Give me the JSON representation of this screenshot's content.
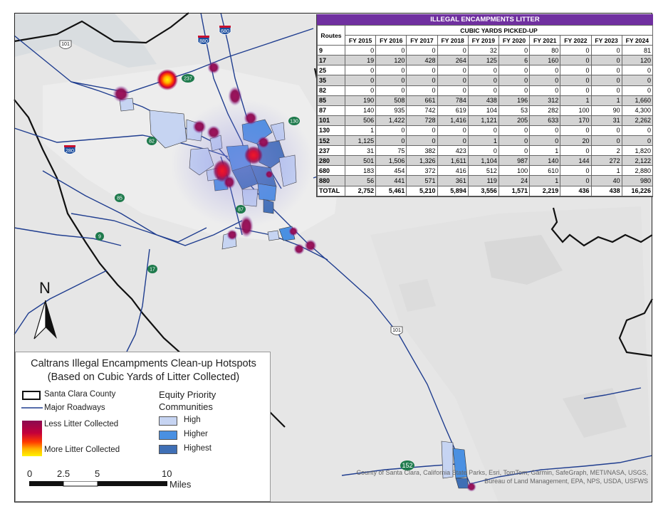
{
  "colors": {
    "county_border": "#111111",
    "roadway": "#1f3d8f",
    "equity_high": "#c6d4f2",
    "equity_higher": "#4a90e2",
    "equity_highest": "#3f6fb5",
    "table_header": "#7030a0",
    "hotspot_low": "#8b0a50",
    "hotspot_high": "#ffe600"
  },
  "table": {
    "title": "ILLEGAL ENCAMPMENTS LITTER",
    "routes_header": "Routes",
    "group_header": "CUBIC YARDS PICKED-UP",
    "years": [
      "FY 2015",
      "FY 2016",
      "FY 2017",
      "FY 2018",
      "FY 2019",
      "FY 2020",
      "FY 2021",
      "FY 2022",
      "FY 2023",
      "FY 2024"
    ],
    "rows": [
      {
        "route": "9",
        "values": [
          "0",
          "0",
          "0",
          "0",
          "32",
          "0",
          "80",
          "0",
          "0",
          "81"
        ],
        "shaded": false
      },
      {
        "route": "17",
        "values": [
          "19",
          "120",
          "428",
          "264",
          "125",
          "6",
          "160",
          "0",
          "0",
          "120"
        ],
        "shaded": true
      },
      {
        "route": "25",
        "values": [
          "0",
          "0",
          "0",
          "0",
          "0",
          "0",
          "0",
          "0",
          "0",
          "0"
        ],
        "shaded": false
      },
      {
        "route": "35",
        "values": [
          "0",
          "0",
          "0",
          "0",
          "0",
          "0",
          "0",
          "0",
          "0",
          "0"
        ],
        "shaded": true
      },
      {
        "route": "82",
        "values": [
          "0",
          "0",
          "0",
          "0",
          "0",
          "0",
          "0",
          "0",
          "0",
          "0"
        ],
        "shaded": false
      },
      {
        "route": "85",
        "values": [
          "190",
          "508",
          "661",
          "784",
          "438",
          "196",
          "312",
          "1",
          "1",
          "1,660"
        ],
        "shaded": true
      },
      {
        "route": "87",
        "values": [
          "140",
          "935",
          "742",
          "619",
          "104",
          "53",
          "282",
          "100",
          "90",
          "4,300"
        ],
        "shaded": false
      },
      {
        "route": "101",
        "values": [
          "506",
          "1,422",
          "728",
          "1,416",
          "1,121",
          "205",
          "633",
          "170",
          "31",
          "2,262"
        ],
        "shaded": true
      },
      {
        "route": "130",
        "values": [
          "1",
          "0",
          "0",
          "0",
          "0",
          "0",
          "0",
          "0",
          "0",
          "0"
        ],
        "shaded": false
      },
      {
        "route": "152",
        "values": [
          "1,125",
          "0",
          "0",
          "0",
          "1",
          "0",
          "0",
          "20",
          "0",
          "0"
        ],
        "shaded": true
      },
      {
        "route": "237",
        "values": [
          "31",
          "75",
          "382",
          "423",
          "0",
          "0",
          "1",
          "0",
          "2",
          "1,820"
        ],
        "shaded": false
      },
      {
        "route": "280",
        "values": [
          "501",
          "1,506",
          "1,326",
          "1,611",
          "1,104",
          "987",
          "140",
          "144",
          "272",
          "2,122"
        ],
        "shaded": true
      },
      {
        "route": "680",
        "values": [
          "183",
          "454",
          "372",
          "416",
          "512",
          "100",
          "610",
          "0",
          "1",
          "2,880"
        ],
        "shaded": false
      },
      {
        "route": "880",
        "values": [
          "56",
          "441",
          "571",
          "361",
          "119",
          "24",
          "1",
          "0",
          "40",
          "980"
        ],
        "shaded": true
      },
      {
        "route": "TOTAL",
        "values": [
          "2,752",
          "5,461",
          "5,210",
          "5,894",
          "3,556",
          "1,571",
          "2,219",
          "436",
          "438",
          "16,226"
        ],
        "shaded": false,
        "total": true
      }
    ]
  },
  "legend": {
    "title_line1": "Caltrans Illegal Encampments Clean-up Hotspots",
    "title_line2": "(Based on Cubic Yards of Litter Collected)",
    "county_label": "Santa Clara County",
    "roadways_label": "Major Roadways",
    "less_label": "Less Litter Collected",
    "more_label": "More Litter Collected",
    "equity_title_line1": "Equity Priority",
    "equity_title_line2": "Communities",
    "equity_high": "High",
    "equity_higher": "Higher",
    "equity_highest": "Highest"
  },
  "scale": {
    "ticks": [
      "0",
      "2.5",
      "5",
      "10"
    ],
    "unit": "Miles"
  },
  "north_label": "N",
  "attribution_line1": "County of Santa Clara, California State Parks, Esri, TomTom, Garmin, SafeGraph, METI/NASA, USGS,",
  "attribution_line2": "Bureau of Land Management, EPA, NPS, USDA, USFWS",
  "route_shields": [
    {
      "label": "101",
      "kind": "us"
    },
    {
      "label": "880",
      "kind": "interstate"
    },
    {
      "label": "680",
      "kind": "interstate"
    },
    {
      "label": "237",
      "kind": "state"
    },
    {
      "label": "130",
      "kind": "state"
    },
    {
      "label": "82",
      "kind": "state"
    },
    {
      "label": "280",
      "kind": "interstate"
    },
    {
      "label": "85",
      "kind": "state"
    },
    {
      "label": "87",
      "kind": "state"
    },
    {
      "label": "9",
      "kind": "state"
    },
    {
      "label": "17",
      "kind": "state"
    },
    {
      "label": "101",
      "kind": "us"
    },
    {
      "label": "152",
      "kind": "state"
    }
  ]
}
